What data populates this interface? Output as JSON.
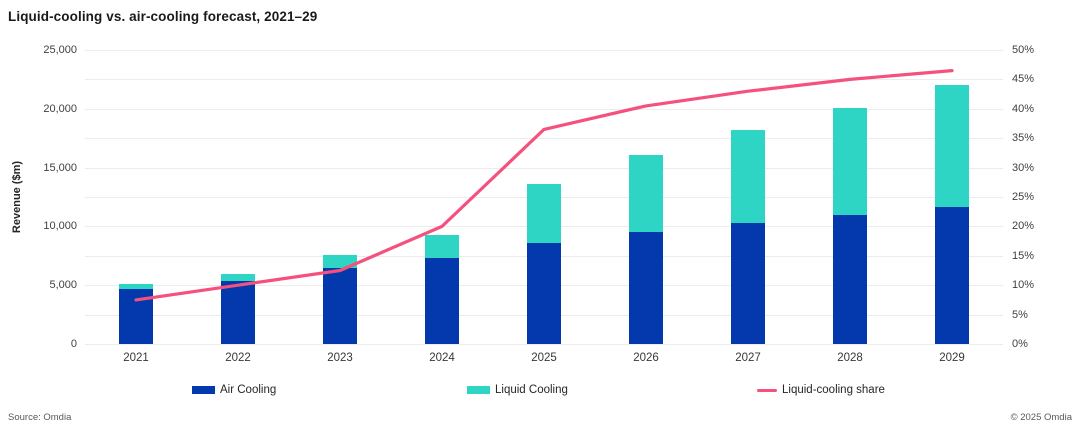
{
  "title": "Liquid-cooling vs. air-cooling forecast, 2021–29",
  "footer": {
    "source": "Source: Omdia",
    "copyright": "© 2025 Omdia"
  },
  "legend": {
    "air_label": "Air Cooling",
    "liquid_label": "Liquid Cooling",
    "share_label": "Liquid-cooling share"
  },
  "colors": {
    "air_blue": "#0339AC",
    "liquid_teal": "#2FD5C4",
    "share_pink": "#F4517D",
    "gridline": "#ececec"
  },
  "chart_data": {
    "type": "combo (stacked bar + line)",
    "title": "Liquid-cooling vs. air-cooling forecast, 2021–29",
    "categories": [
      "2021",
      "2022",
      "2023",
      "2024",
      "2025",
      "2026",
      "2027",
      "2028",
      "2029"
    ],
    "series": [
      {
        "name": "Air Cooling",
        "type": "bar",
        "stacked": true,
        "color": "#0339AC",
        "axis": "left",
        "values": [
          4650,
          5350,
          6500,
          7350,
          8600,
          9500,
          10300,
          11000,
          11650
        ]
      },
      {
        "name": "Liquid Cooling",
        "type": "bar",
        "stacked": true,
        "color": "#2FD5C4",
        "axis": "left",
        "values": [
          450,
          600,
          1050,
          1950,
          5050,
          6600,
          7900,
          9100,
          10350
        ]
      },
      {
        "name": "Liquid-cooling share",
        "type": "line",
        "color": "#F4517D",
        "axis": "right",
        "values": [
          7.5,
          10,
          12.5,
          20,
          36.5,
          40.5,
          43,
          45,
          46.5
        ]
      }
    ],
    "left_axis": {
      "title": "Revenue ($m)",
      "range": [
        0,
        25000
      ],
      "gridline_step": 2500,
      "tick_values": [
        0,
        5000,
        10000,
        15000,
        20000,
        25000
      ],
      "tick_labels": [
        "0",
        "5,000",
        "10,000",
        "15,000",
        "20,000",
        "25,000"
      ]
    },
    "right_axis": {
      "title": "",
      "range": [
        0,
        50
      ],
      "tick_values": [
        0,
        5,
        10,
        15,
        20,
        25,
        30,
        35,
        40,
        45,
        50
      ],
      "tick_labels": [
        "0%",
        "5%",
        "10%",
        "15%",
        "20%",
        "25%",
        "30%",
        "35%",
        "40%",
        "45%",
        "50%"
      ]
    },
    "grid": true,
    "legend_position": "bottom"
  }
}
